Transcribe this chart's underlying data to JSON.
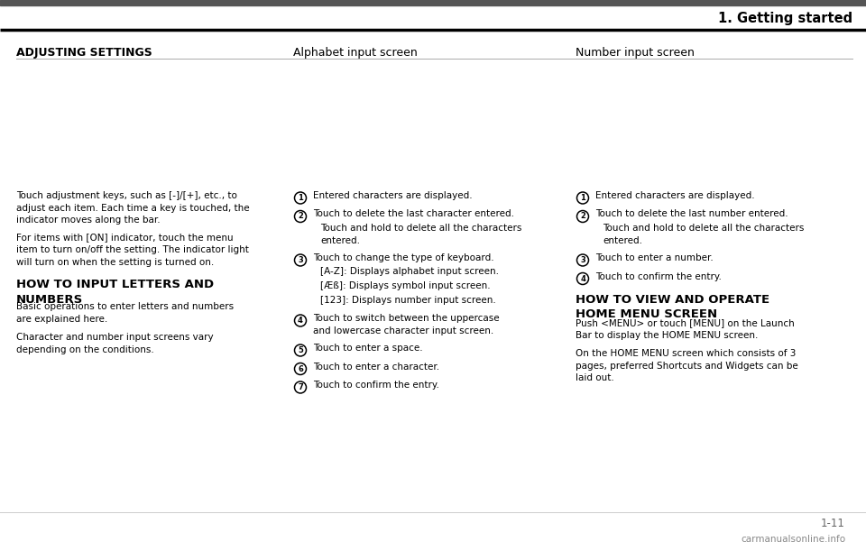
{
  "bg_color": "#ffffff",
  "header_text": "1. Getting started",
  "top_bar_color": "#555555",
  "col1_header": "ADJUSTING SETTINGS",
  "col2_header": "Alphabet input screen",
  "col3_header": "Number input screen",
  "col1_body": [
    "Touch adjustment keys, such as [-]/[+], etc., to\nadjust each item. Each time a key is touched, the\nindicator moves along the bar.",
    "For items with [ON] indicator, touch the menu\nitem to turn on/off the setting. The indicator light\nwill turn on when the setting is turned on."
  ],
  "col1_section2_title": "HOW TO INPUT LETTERS AND\nNUMBERS",
  "col1_section2_body": [
    "Basic operations to enter letters and numbers\nare explained here.",
    "Character and number input screens vary\ndepending on the conditions."
  ],
  "col2_items": [
    [
      "1",
      "Entered characters are displayed.",
      []
    ],
    [
      "2",
      "Touch to delete the last character entered.",
      [
        "Touch and hold to delete all the characters\nentered."
      ]
    ],
    [
      "3",
      "Touch to change the type of keyboard.",
      [
        "[A-Z]: Displays alphabet input screen.",
        "[Æß]: Displays symbol input screen.",
        "[123]: Displays number input screen."
      ]
    ],
    [
      "4",
      "Touch to switch between the uppercase\nand lowercase character input screen.",
      []
    ],
    [
      "5",
      "Touch to enter a space.",
      []
    ],
    [
      "6",
      "Touch to enter a character.",
      []
    ],
    [
      "7",
      "Touch to confirm the entry.",
      []
    ]
  ],
  "col3_items": [
    [
      "1",
      "Entered characters are displayed.",
      []
    ],
    [
      "2",
      "Touch to delete the last number entered.",
      [
        "Touch and hold to delete all the characters\nentered."
      ]
    ],
    [
      "3",
      "Touch to enter a number.",
      []
    ],
    [
      "4",
      "Touch to confirm the entry.",
      []
    ]
  ],
  "col3_section2_title": "HOW TO VIEW AND OPERATE\nHOME MENU SCREEN",
  "col3_section2_body_parts": [
    [
      [
        "normal",
        "Push "
      ],
      [
        "bold",
        "<MENU>"
      ],
      [
        "normal",
        " or touch [MENU] on the Launch\nBar to display the HOME MENU screen."
      ]
    ],
    [
      [
        "normal",
        "On the HOME MENU screen which consists of 3\npages, preferred Shortcuts and Widgets can be\nlaid out."
      ]
    ]
  ],
  "page_number": "1-11",
  "watermark": "carmanualsonline.info"
}
